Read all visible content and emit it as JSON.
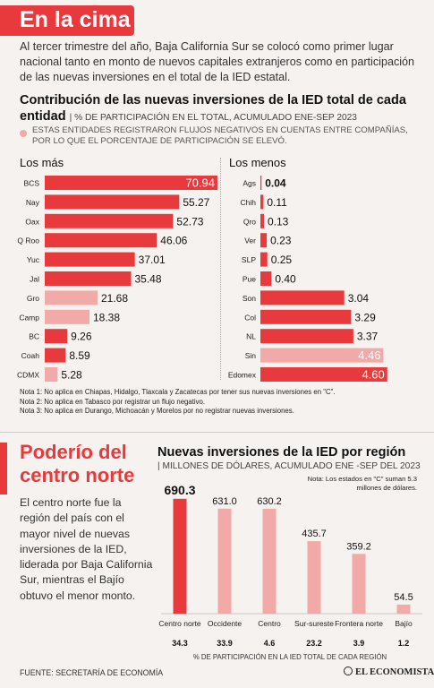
{
  "header": {
    "title": "En la cima"
  },
  "intro": "Al tercer trimestre del año, Baja California Sur se colocó como primer lugar nacional tanto en monto de nuevos capitales extranjeros como en participación de las nuevas inversiones en el total de la IED estatal.",
  "section1": {
    "title": "Contribución de las nuevas inversiones de la IED total de cada entidad",
    "subtitle": "| % DE PARTICIPACIÓN EN EL TOTAL, ACUMULADO ENE-SEP 2023",
    "legend_note": "ESTAS ENTIDADES REGISTRARON FLUJOS NEGATIVOS EN CUENTAS ENTRE COMPAÑÍAS, POR LO QUE EL PORCENTAJE DE PARTICIPACIÓN SE ELEVÓ.",
    "left_title": "Los más",
    "right_title": "Los menos"
  },
  "notes": [
    "Nota 1: No aplica en Chiapas, Hidalgo, Tlaxcala y Zacatecas por tener sus nuevas inversiones en \"C\".",
    "Nota 2: No aplica en Tabasco por registrar un flujo negativo.",
    "Nota 3: No aplica en Durango, Michoacán y Morelos por no registrar nuevas inversiones."
  ],
  "section2": {
    "title": "Poderío del centro norte",
    "body": "El centro norte fue la región del país con el mayor nivel de nuevas inversiones de la IED, liderada por Baja California Sur, mientras el Bajío obtuvo el menor monto."
  },
  "section3": {
    "title": "Nuevas inversiones de la IED por región",
    "subtitle": "| MILLONES DE DÓLARES, ACUMULADO ENE -SEP DEL 2023",
    "note": "Nota: Los estados en \"C\" suman 5.3 millones de dólares.",
    "axis_note": "% DE PARTICIPACIÓN EN LA IED TOTAL DE CADA REGIÓN"
  },
  "footer": {
    "source": "FUENTE: SECRETARÍA DE ECONOMÍA",
    "brand": "EL ECONOMISTA"
  },
  "colors": {
    "accent": "#e8393c",
    "highlight": "#f2aaa8",
    "background": "#f6f2ef"
  },
  "chart_data": [
    {
      "type": "bar",
      "orientation": "horizontal",
      "title": "Los más",
      "categories": [
        "BCS",
        "Nay",
        "Oax",
        "Q Roo",
        "Yuc",
        "Jal",
        "Gro",
        "Camp",
        "BC",
        "Coah",
        "CDMX"
      ],
      "values": [
        70.94,
        55.27,
        52.73,
        46.06,
        37.01,
        35.48,
        21.68,
        18.38,
        9.26,
        8.59,
        5.28
      ],
      "labels": [
        "70.94",
        "55.27",
        "52.73",
        "46.06",
        "37.01",
        "35.48",
        "21.68",
        "18.38",
        "9.26",
        "8.59",
        "5.28"
      ],
      "highlighted": [
        false,
        false,
        false,
        false,
        false,
        false,
        true,
        true,
        false,
        false,
        true
      ],
      "xlim": [
        0,
        100
      ]
    },
    {
      "type": "bar",
      "orientation": "horizontal",
      "title": "Los menos",
      "categories": [
        "Ags",
        "Chih",
        "Qro",
        "Ver",
        "SLP",
        "Pue",
        "Son",
        "Col",
        "NL",
        "Sin",
        "Edomex"
      ],
      "values": [
        0.04,
        0.11,
        0.13,
        0.23,
        0.25,
        0.4,
        3.04,
        3.29,
        3.37,
        4.46,
        4.6
      ],
      "labels": [
        "0.04",
        "0.11",
        "0.13",
        "0.23",
        "0.25",
        "0.40",
        "3.04",
        "3.29",
        "3.37",
        "4.46",
        "4.60"
      ],
      "highlighted": [
        false,
        false,
        false,
        false,
        false,
        false,
        false,
        false,
        false,
        true,
        false
      ],
      "xlim": [
        0,
        6.1
      ]
    },
    {
      "type": "bar",
      "orientation": "vertical",
      "title": "Nuevas inversiones de la IED por región",
      "categories": [
        "Centro norte",
        "Occidente",
        "Centro",
        "Sur-sureste",
        "Frontera norte",
        "Bajío"
      ],
      "values": [
        690.3,
        631.0,
        630.2,
        435.7,
        359.2,
        54.5
      ],
      "labels": [
        "690.3",
        "631.0",
        "630.2",
        "435.7",
        "359.2",
        "54.5"
      ],
      "participation": [
        "34.3",
        "33.9",
        "4.6",
        "23.2",
        "3.9",
        "1.2"
      ],
      "ylim": [
        0,
        700
      ]
    }
  ]
}
